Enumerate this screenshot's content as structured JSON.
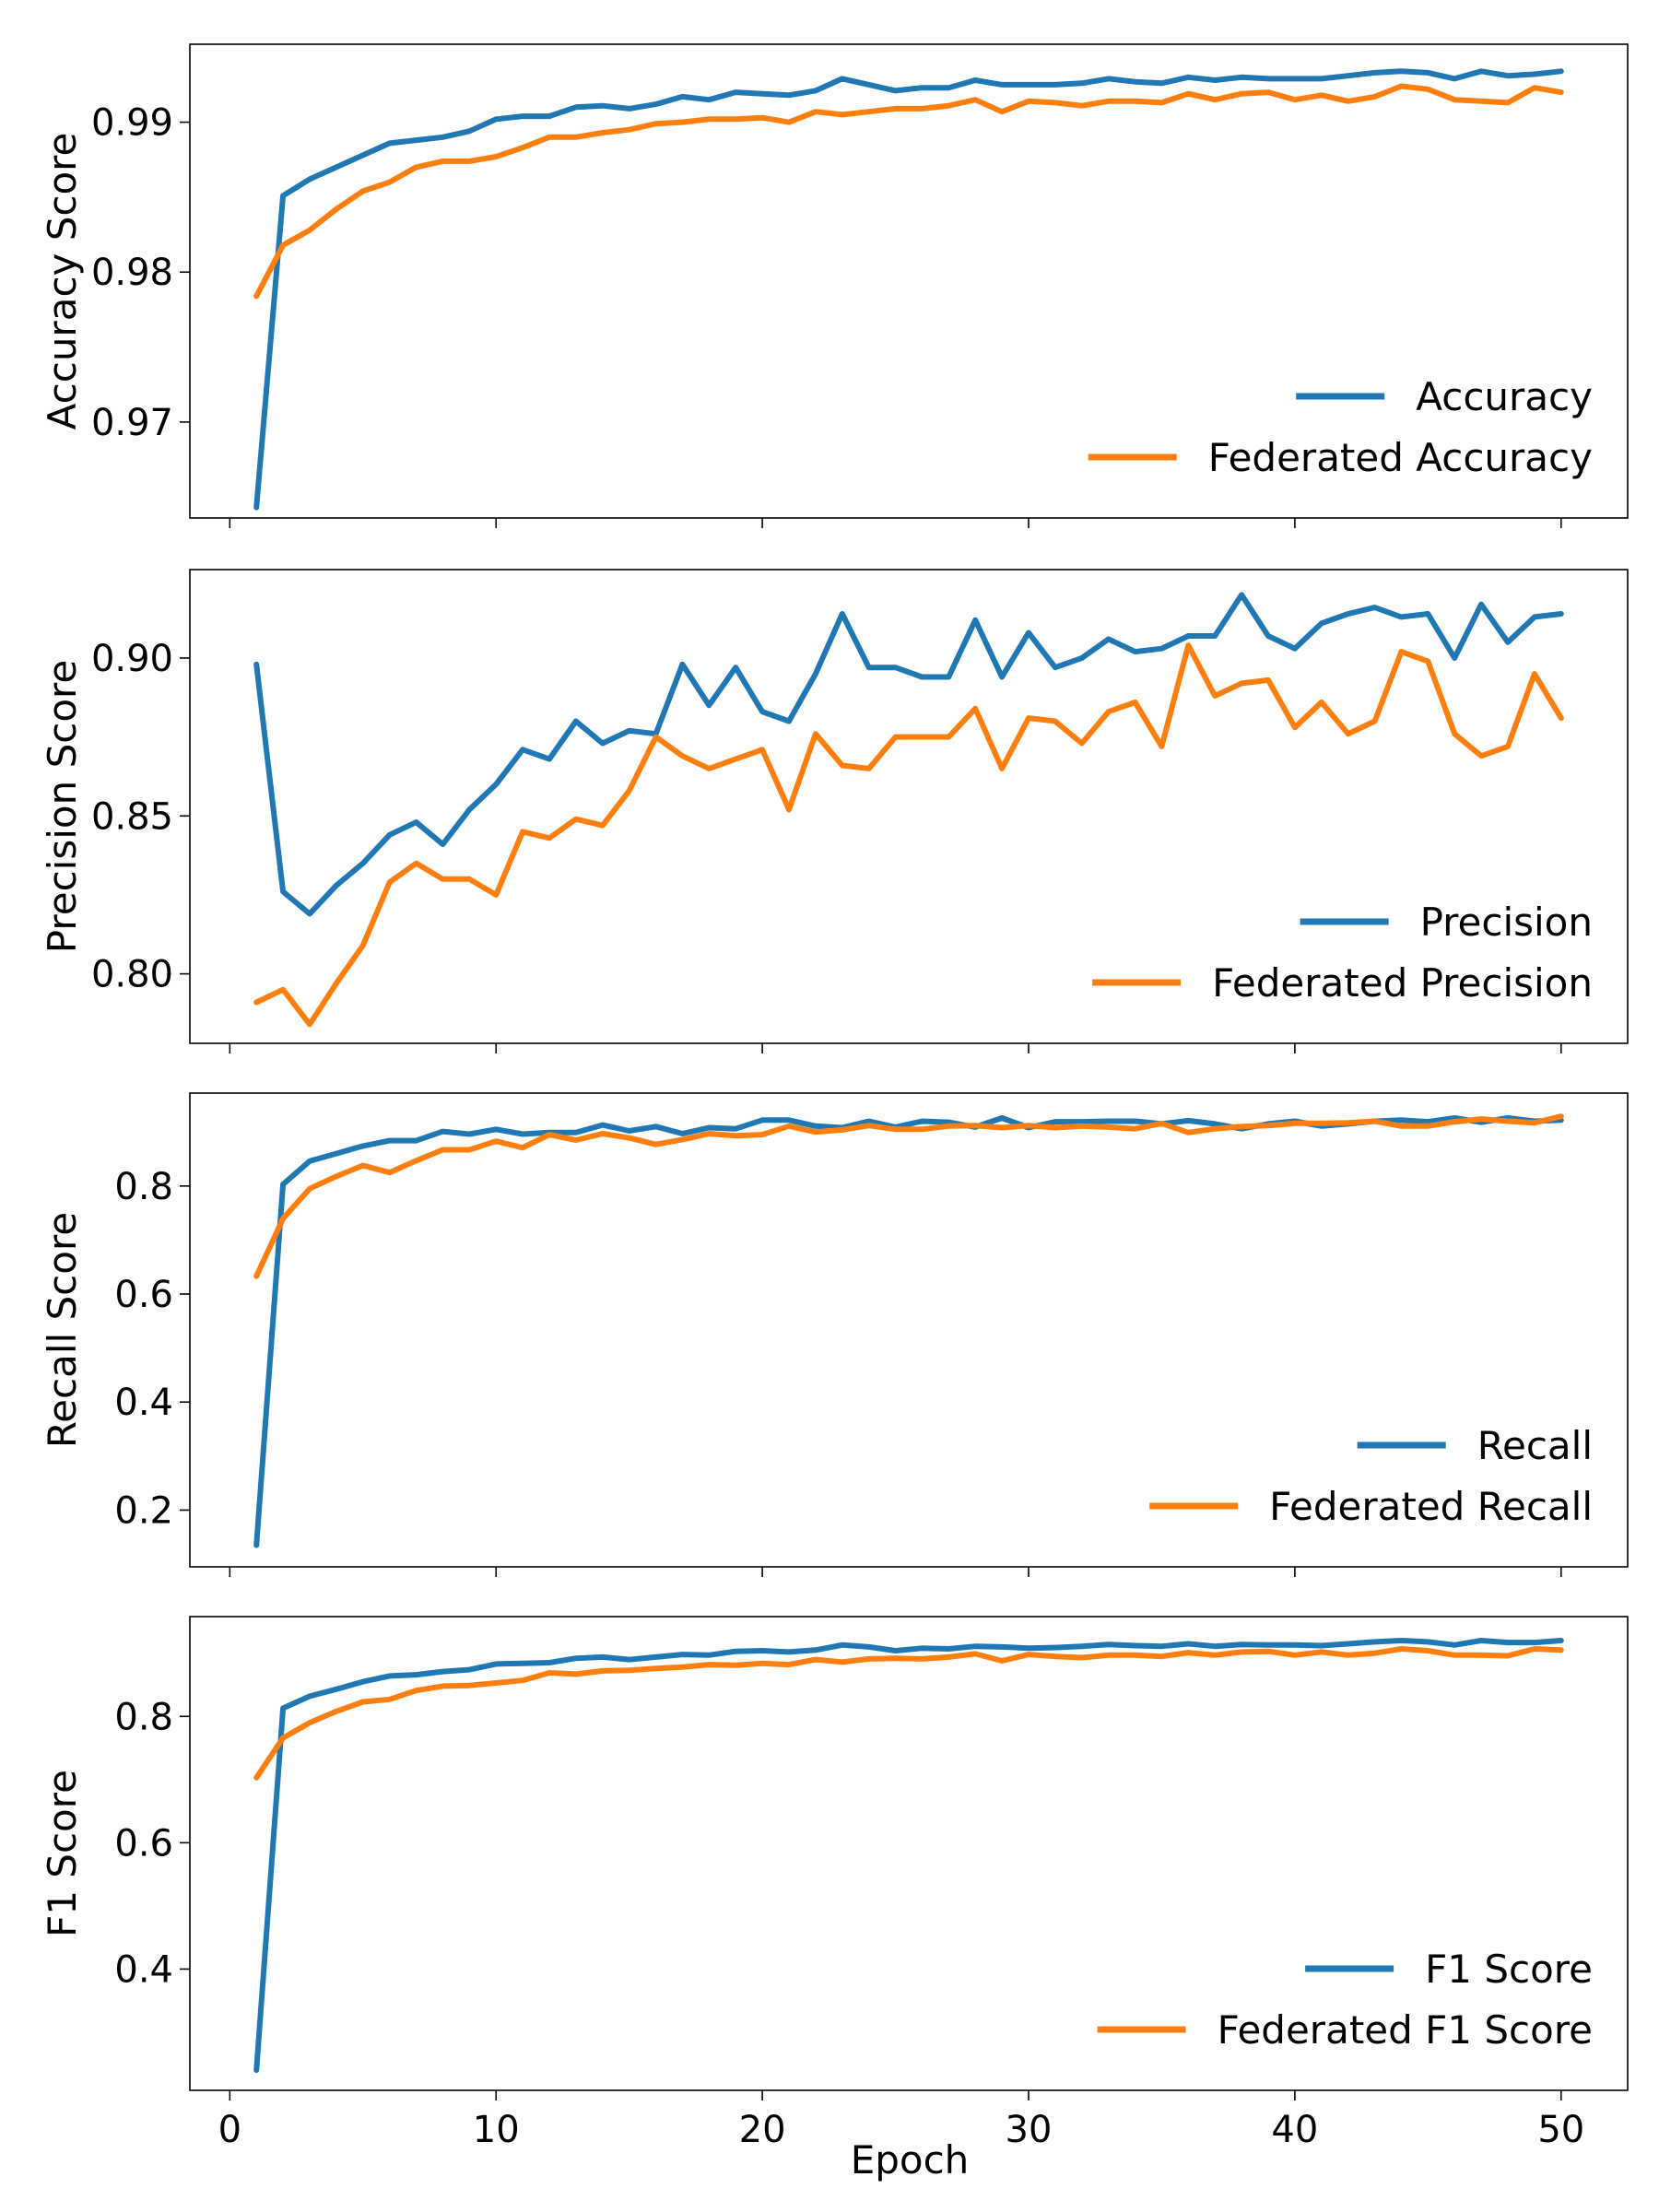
{
  "chart_data": [
    {
      "type": "line",
      "ylabel": "Accuracy Score",
      "xlabel": "",
      "xlim": [
        -1.5,
        52.5
      ],
      "ylim": [
        0.9636,
        0.9952
      ],
      "yticks": [
        0.97,
        0.98,
        0.99
      ],
      "ytick_labels": [
        "0.97",
        "0.98",
        "0.99"
      ],
      "xticks": [
        0,
        10,
        20,
        30,
        40,
        50
      ],
      "xtick_labels": [],
      "legend_position": "lower-right",
      "x": [
        1,
        2,
        3,
        4,
        5,
        6,
        7,
        8,
        9,
        10,
        11,
        12,
        13,
        14,
        15,
        16,
        17,
        18,
        19,
        20,
        21,
        22,
        23,
        24,
        25,
        26,
        27,
        28,
        29,
        30,
        31,
        32,
        33,
        34,
        35,
        36,
        37,
        38,
        39,
        40,
        41,
        42,
        43,
        44,
        45,
        46,
        47,
        48,
        49,
        50
      ],
      "series": [
        {
          "name": "Accuracy",
          "color": "#1f77b4",
          "values": [
            0.9643,
            0.9851,
            0.9862,
            0.987,
            0.9878,
            0.9886,
            0.9888,
            0.989,
            0.9894,
            0.9902,
            0.9904,
            0.9904,
            0.991,
            0.9911,
            0.9909,
            0.9912,
            0.9917,
            0.9915,
            0.992,
            0.9919,
            0.9918,
            0.9921,
            0.9929,
            0.9925,
            0.9921,
            0.9923,
            0.9923,
            0.9928,
            0.9925,
            0.9925,
            0.9925,
            0.9926,
            0.9929,
            0.9927,
            0.9926,
            0.993,
            0.9928,
            0.993,
            0.9929,
            0.9929,
            0.9929,
            0.9931,
            0.9933,
            0.9934,
            0.9933,
            0.9929,
            0.9934,
            0.9931,
            0.9932,
            0.9934
          ]
        },
        {
          "name": "Federated Accuracy",
          "color": "#ff7f0e",
          "values": [
            0.9784,
            0.9818,
            0.9828,
            0.9842,
            0.9854,
            0.986,
            0.987,
            0.9874,
            0.9874,
            0.9877,
            0.9883,
            0.989,
            0.989,
            0.9893,
            0.9895,
            0.9899,
            0.99,
            0.9902,
            0.9902,
            0.9903,
            0.99,
            0.9907,
            0.9905,
            0.9907,
            0.9909,
            0.9909,
            0.9911,
            0.9915,
            0.9907,
            0.9914,
            0.9913,
            0.9911,
            0.9914,
            0.9914,
            0.9913,
            0.9919,
            0.9915,
            0.9919,
            0.992,
            0.9915,
            0.9918,
            0.9914,
            0.9917,
            0.9924,
            0.9922,
            0.9915,
            0.9914,
            0.9913,
            0.9923,
            0.992
          ]
        }
      ]
    },
    {
      "type": "line",
      "ylabel": "Precision Score",
      "xlabel": "",
      "xlim": [
        -1.5,
        52.5
      ],
      "ylim": [
        0.778,
        0.928
      ],
      "yticks": [
        0.8,
        0.85,
        0.9
      ],
      "ytick_labels": [
        "0.80",
        "0.85",
        "0.90"
      ],
      "xticks": [
        0,
        10,
        20,
        30,
        40,
        50
      ],
      "xtick_labels": [],
      "legend_position": "lower-right",
      "x": [
        1,
        2,
        3,
        4,
        5,
        6,
        7,
        8,
        9,
        10,
        11,
        12,
        13,
        14,
        15,
        16,
        17,
        18,
        19,
        20,
        21,
        22,
        23,
        24,
        25,
        26,
        27,
        28,
        29,
        30,
        31,
        32,
        33,
        34,
        35,
        36,
        37,
        38,
        39,
        40,
        41,
        42,
        43,
        44,
        45,
        46,
        47,
        48,
        49,
        50
      ],
      "series": [
        {
          "name": "Precision",
          "color": "#1f77b4",
          "values": [
            0.898,
            0.826,
            0.819,
            0.828,
            0.835,
            0.844,
            0.848,
            0.841,
            0.852,
            0.86,
            0.871,
            0.868,
            0.88,
            0.873,
            0.877,
            0.876,
            0.898,
            0.885,
            0.897,
            0.883,
            0.88,
            0.895,
            0.914,
            0.897,
            0.897,
            0.894,
            0.894,
            0.912,
            0.894,
            0.908,
            0.897,
            0.9,
            0.906,
            0.902,
            0.903,
            0.907,
            0.907,
            0.92,
            0.907,
            0.903,
            0.911,
            0.914,
            0.916,
            0.913,
            0.914,
            0.9,
            0.917,
            0.905,
            0.913,
            0.914
          ]
        },
        {
          "name": "Federated Precision",
          "color": "#ff7f0e",
          "values": [
            0.791,
            0.795,
            0.784,
            0.797,
            0.809,
            0.829,
            0.835,
            0.83,
            0.83,
            0.825,
            0.845,
            0.843,
            0.849,
            0.847,
            0.858,
            0.875,
            0.869,
            0.865,
            0.868,
            0.871,
            0.852,
            0.876,
            0.866,
            0.865,
            0.875,
            0.875,
            0.875,
            0.884,
            0.865,
            0.881,
            0.88,
            0.873,
            0.883,
            0.886,
            0.872,
            0.904,
            0.888,
            0.892,
            0.893,
            0.878,
            0.886,
            0.876,
            0.88,
            0.902,
            0.899,
            0.876,
            0.869,
            0.872,
            0.895,
            0.881
          ]
        }
      ]
    },
    {
      "type": "line",
      "ylabel": "Recall Score",
      "xlabel": "",
      "xlim": [
        -1.5,
        52.5
      ],
      "ylim": [
        0.095,
        0.972
      ],
      "yticks": [
        0.2,
        0.4,
        0.6,
        0.8
      ],
      "ytick_labels": [
        "0.2",
        "0.4",
        "0.6",
        "0.8"
      ],
      "xticks": [
        0,
        10,
        20,
        30,
        40,
        50
      ],
      "xtick_labels": [],
      "legend_position": "lower-right",
      "x": [
        1,
        2,
        3,
        4,
        5,
        6,
        7,
        8,
        9,
        10,
        11,
        12,
        13,
        14,
        15,
        16,
        17,
        18,
        19,
        20,
        21,
        22,
        23,
        24,
        25,
        26,
        27,
        28,
        29,
        30,
        31,
        32,
        33,
        34,
        35,
        36,
        37,
        38,
        39,
        40,
        41,
        42,
        43,
        44,
        45,
        46,
        47,
        48,
        49,
        50
      ],
      "series": [
        {
          "name": "Recall",
          "color": "#1f77b4",
          "values": [
            0.135,
            0.803,
            0.846,
            0.86,
            0.874,
            0.884,
            0.884,
            0.901,
            0.896,
            0.905,
            0.896,
            0.899,
            0.899,
            0.913,
            0.902,
            0.91,
            0.897,
            0.908,
            0.906,
            0.922,
            0.922,
            0.911,
            0.908,
            0.92,
            0.909,
            0.92,
            0.918,
            0.909,
            0.926,
            0.908,
            0.919,
            0.919,
            0.92,
            0.92,
            0.915,
            0.921,
            0.915,
            0.906,
            0.915,
            0.92,
            0.911,
            0.915,
            0.92,
            0.922,
            0.919,
            0.926,
            0.918,
            0.926,
            0.92,
            0.922
          ]
        },
        {
          "name": "Federated Recall",
          "color": "#ff7f0e",
          "values": [
            0.633,
            0.74,
            0.795,
            0.818,
            0.838,
            0.825,
            0.847,
            0.867,
            0.867,
            0.883,
            0.871,
            0.895,
            0.885,
            0.897,
            0.889,
            0.877,
            0.886,
            0.897,
            0.893,
            0.895,
            0.911,
            0.9,
            0.904,
            0.912,
            0.905,
            0.905,
            0.911,
            0.912,
            0.908,
            0.912,
            0.908,
            0.911,
            0.909,
            0.906,
            0.916,
            0.899,
            0.906,
            0.91,
            0.912,
            0.916,
            0.916,
            0.917,
            0.92,
            0.911,
            0.911,
            0.919,
            0.924,
            0.92,
            0.917,
            0.929
          ]
        }
      ]
    },
    {
      "type": "line",
      "ylabel": "F1 Score",
      "xlabel": "Epoch",
      "xlim": [
        -1.5,
        52.5
      ],
      "ylim": [
        0.208,
        0.958
      ],
      "yticks": [
        0.4,
        0.6,
        0.8
      ],
      "ytick_labels": [
        "0.4",
        "0.6",
        "0.8"
      ],
      "xticks": [
        0,
        10,
        20,
        30,
        40,
        50
      ],
      "xtick_labels": [
        "0",
        "10",
        "20",
        "30",
        "40",
        "50"
      ],
      "legend_position": "lower-right",
      "x": [
        1,
        2,
        3,
        4,
        5,
        6,
        7,
        8,
        9,
        10,
        11,
        12,
        13,
        14,
        15,
        16,
        17,
        18,
        19,
        20,
        21,
        22,
        23,
        24,
        25,
        26,
        27,
        28,
        29,
        30,
        31,
        32,
        33,
        34,
        35,
        36,
        37,
        38,
        39,
        40,
        41,
        42,
        43,
        44,
        45,
        46,
        47,
        48,
        49,
        50
      ],
      "series": [
        {
          "name": "F1 Score",
          "color": "#1f77b4",
          "values": [
            0.24,
            0.813,
            0.832,
            0.843,
            0.855,
            0.864,
            0.866,
            0.871,
            0.874,
            0.883,
            0.884,
            0.885,
            0.892,
            0.894,
            0.89,
            0.894,
            0.898,
            0.897,
            0.903,
            0.904,
            0.902,
            0.905,
            0.913,
            0.91,
            0.904,
            0.908,
            0.907,
            0.911,
            0.91,
            0.908,
            0.909,
            0.911,
            0.914,
            0.912,
            0.911,
            0.915,
            0.911,
            0.914,
            0.913,
            0.913,
            0.912,
            0.915,
            0.918,
            0.92,
            0.918,
            0.913,
            0.92,
            0.917,
            0.917,
            0.92
          ]
        },
        {
          "name": "Federated F1 Score",
          "color": "#ff7f0e",
          "values": [
            0.703,
            0.766,
            0.79,
            0.808,
            0.823,
            0.827,
            0.841,
            0.848,
            0.849,
            0.853,
            0.857,
            0.869,
            0.867,
            0.872,
            0.873,
            0.876,
            0.878,
            0.882,
            0.881,
            0.884,
            0.882,
            0.89,
            0.886,
            0.891,
            0.892,
            0.891,
            0.894,
            0.899,
            0.888,
            0.898,
            0.895,
            0.893,
            0.897,
            0.897,
            0.895,
            0.901,
            0.897,
            0.902,
            0.903,
            0.897,
            0.902,
            0.897,
            0.9,
            0.907,
            0.904,
            0.897,
            0.897,
            0.896,
            0.907,
            0.905
          ]
        }
      ]
    }
  ]
}
